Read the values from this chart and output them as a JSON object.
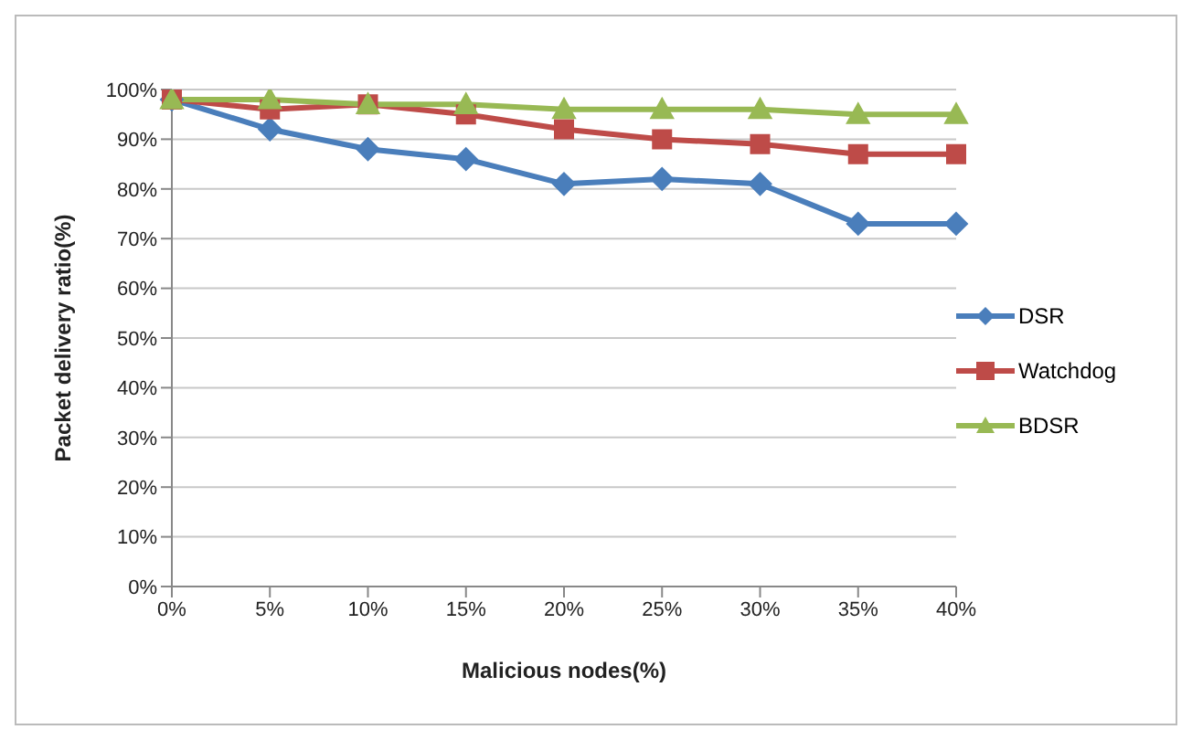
{
  "chart_data": {
    "type": "line",
    "xlabel": "Malicious nodes(%)",
    "ylabel": "Packet delivery ratio(%)",
    "categories": [
      "0%",
      "5%",
      "10%",
      "15%",
      "20%",
      "25%",
      "30%",
      "35%",
      "40%"
    ],
    "series": [
      {
        "name": "DSR",
        "color": "#4a7ebb",
        "marker": "diamond",
        "values": [
          98,
          92,
          88,
          86,
          81,
          82,
          81,
          73,
          73
        ]
      },
      {
        "name": "Watchdog",
        "color": "#be4b48",
        "marker": "square",
        "values": [
          98,
          96,
          97,
          95,
          92,
          90,
          89,
          87,
          87
        ]
      },
      {
        "name": "BDSR",
        "color": "#98b954",
        "marker": "triangle",
        "values": [
          98,
          98,
          97,
          97,
          96,
          96,
          96,
          95,
          95
        ]
      }
    ],
    "ylim": [
      0,
      100
    ],
    "yticks": [
      {
        "value": 0,
        "label": "0%"
      },
      {
        "value": 10,
        "label": "10%"
      },
      {
        "value": 20,
        "label": "20%"
      },
      {
        "value": 30,
        "label": "30%"
      },
      {
        "value": 40,
        "label": "40%"
      },
      {
        "value": 50,
        "label": "50%"
      },
      {
        "value": 60,
        "label": "60%"
      },
      {
        "value": 70,
        "label": "70%"
      },
      {
        "value": 80,
        "label": "80%"
      },
      {
        "value": 90,
        "label": "90%"
      },
      {
        "value": 100,
        "label": "100%"
      }
    ],
    "grid": "y",
    "legend": "right",
    "line_style": "solid"
  }
}
